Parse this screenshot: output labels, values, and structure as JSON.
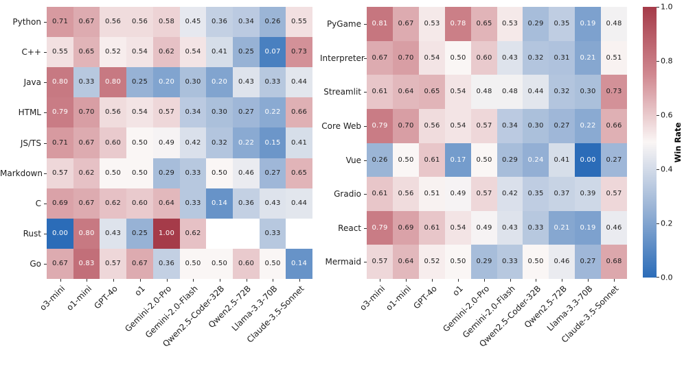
{
  "chart_data": {
    "type": "heatmap",
    "columns": [
      "o3-mini",
      "o1-mini",
      "GPT-4o",
      "o1",
      "Gemini-2.0-Pro",
      "Gemini-2.0-Flash",
      "Qwen2.5-Coder-32B",
      "Qwen2.5-72B",
      "Llama-3.3-70B",
      "Claude-3.5-Sonnet"
    ],
    "panels": [
      {
        "name": "win-rate-by-language",
        "rows": [
          "Python",
          "C++",
          "Java",
          "HTML",
          "JS/TS",
          "Markdown",
          "C",
          "Rust",
          "Go"
        ],
        "values": [
          [
            0.71,
            0.67,
            0.56,
            0.56,
            0.58,
            0.45,
            0.36,
            0.34,
            0.26,
            0.55
          ],
          [
            0.55,
            0.65,
            0.52,
            0.54,
            0.62,
            0.54,
            0.41,
            0.25,
            0.07,
            0.73
          ],
          [
            0.8,
            0.33,
            0.8,
            0.25,
            0.2,
            0.3,
            0.2,
            0.43,
            0.33,
            0.44
          ],
          [
            0.79,
            0.7,
            0.56,
            0.54,
            0.57,
            0.34,
            0.3,
            0.27,
            0.22,
            0.66
          ],
          [
            0.71,
            0.67,
            0.6,
            0.5,
            0.49,
            0.42,
            0.32,
            0.22,
            0.15,
            0.41
          ],
          [
            0.57,
            0.62,
            0.5,
            0.5,
            0.29,
            0.33,
            0.5,
            0.46,
            0.27,
            0.65
          ],
          [
            0.69,
            0.67,
            0.62,
            0.6,
            0.64,
            0.33,
            0.14,
            0.36,
            0.43,
            0.44
          ],
          [
            0.0,
            0.8,
            0.43,
            0.25,
            1.0,
            0.62,
            null,
            null,
            0.33,
            null
          ],
          [
            0.67,
            0.83,
            0.57,
            0.67,
            0.36,
            0.5,
            0.5,
            0.6,
            0.5,
            0.14
          ]
        ]
      },
      {
        "name": "win-rate-by-scenario",
        "rows": [
          "PyGame",
          "Interpreter",
          "Streamlit",
          "Core Web",
          "Vue",
          "Gradio",
          "React",
          "Mermaid"
        ],
        "values": [
          [
            0.81,
            0.67,
            0.53,
            0.78,
            0.65,
            0.53,
            0.29,
            0.35,
            0.19,
            0.48
          ],
          [
            0.67,
            0.7,
            0.54,
            0.5,
            0.6,
            0.43,
            0.32,
            0.31,
            0.21,
            0.51
          ],
          [
            0.61,
            0.64,
            0.65,
            0.54,
            0.48,
            0.48,
            0.44,
            0.32,
            0.3,
            0.73
          ],
          [
            0.79,
            0.7,
            0.56,
            0.54,
            0.57,
            0.34,
            0.3,
            0.27,
            0.22,
            0.66
          ],
          [
            0.26,
            0.5,
            0.61,
            0.17,
            0.5,
            0.29,
            0.24,
            0.41,
            0.0,
            0.27
          ],
          [
            0.61,
            0.56,
            0.51,
            0.49,
            0.57,
            0.42,
            0.35,
            0.37,
            0.39,
            0.57
          ],
          [
            0.79,
            0.69,
            0.61,
            0.54,
            0.49,
            0.43,
            0.33,
            0.21,
            0.19,
            0.46
          ],
          [
            0.57,
            0.64,
            0.52,
            0.5,
            0.29,
            0.33,
            0.5,
            0.46,
            0.27,
            0.68
          ]
        ]
      }
    ],
    "colorbar": {
      "label": "Win Rate",
      "ticks": [
        "1.0",
        "0.8",
        "0.6",
        "0.4",
        "0.2",
        "0.0"
      ],
      "range": [
        0,
        1
      ]
    },
    "colors": {
      "cmap_stops": [
        [
          0,
          "#2b6cb8"
        ],
        [
          0.25,
          "#97b2d5"
        ],
        [
          0.5,
          "#faf6f5"
        ],
        [
          0.75,
          "#d08890"
        ],
        [
          1,
          "#a53b49"
        ]
      ],
      "nan_cell": "#ffffff",
      "text_dark": "#1c1c1c",
      "text_light": "#ffffff"
    }
  }
}
